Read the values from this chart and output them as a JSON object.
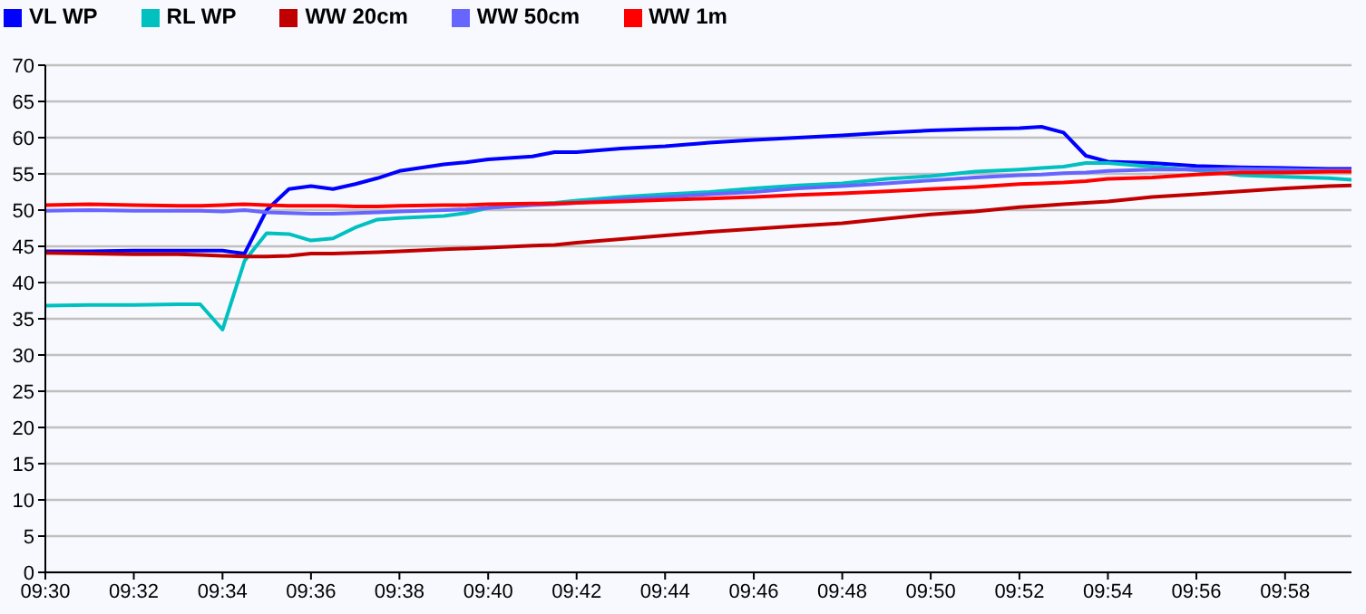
{
  "chart_data": {
    "type": "line",
    "x": [
      9.5,
      9.5167,
      9.5333,
      9.55,
      9.5583,
      9.5667,
      9.575,
      9.5833,
      9.5917,
      9.6,
      9.6083,
      9.6167,
      9.625,
      9.6333,
      9.65,
      9.6583,
      9.6667,
      9.6833,
      9.6917,
      9.7,
      9.7167,
      9.7333,
      9.75,
      9.7667,
      9.7833,
      9.8,
      9.8167,
      9.8333,
      9.85,
      9.8667,
      9.875,
      9.8833,
      9.8917,
      9.9,
      9.9167,
      9.9333,
      9.95,
      9.9667,
      9.9833,
      9.9917
    ],
    "series": [
      {
        "name": "VL WP",
        "color": "#0000ff",
        "values": [
          44.3,
          44.3,
          44.4,
          44.4,
          44.4,
          44.4,
          44.0,
          50,
          52.9,
          53.3,
          52.9,
          53.6,
          54.4,
          55.4,
          56.3,
          56.6,
          57,
          57.4,
          58,
          58,
          58.5,
          58.8,
          59.3,
          59.7,
          60,
          60.3,
          60.7,
          61,
          61.2,
          61.3,
          61.5,
          60.7,
          57.5,
          56.7,
          56.5,
          56.1,
          55.9,
          55.8,
          55.7,
          55.7
        ]
      },
      {
        "name": "RL WP",
        "color": "#00c0c0",
        "values": [
          36.8,
          36.9,
          36.9,
          37,
          37,
          33.5,
          43,
          46.8,
          46.7,
          45.8,
          46.1,
          47.6,
          48.7,
          48.9,
          49.2,
          49.6,
          50.3,
          50.8,
          51,
          51.3,
          51.8,
          52.2,
          52.5,
          53,
          53.4,
          53.7,
          54.3,
          54.7,
          55.3,
          55.6,
          55.8,
          56,
          56.5,
          56.5,
          56,
          55.5,
          54.8,
          54.6,
          54.4,
          54.2
        ]
      },
      {
        "name": "WW 20cm",
        "color": "#c00000",
        "values": [
          44.1,
          44,
          43.9,
          43.9,
          43.8,
          43.7,
          43.6,
          43.6,
          43.7,
          44,
          44,
          44.1,
          44.2,
          44.3,
          44.6,
          44.7,
          44.8,
          45.1,
          45.2,
          45.5,
          46,
          46.5,
          47,
          47.4,
          47.8,
          48.2,
          48.8,
          49.4,
          49.8,
          50.4,
          50.6,
          50.8,
          51,
          51.2,
          51.8,
          52.2,
          52.6,
          53,
          53.3,
          53.4
        ]
      },
      {
        "name": "WW 50cm",
        "color": "#6666ff",
        "values": [
          49.9,
          50,
          49.9,
          49.9,
          49.9,
          49.8,
          50,
          49.7,
          49.6,
          49.5,
          49.5,
          49.6,
          49.7,
          49.8,
          50,
          50.1,
          50.3,
          50.7,
          50.8,
          51,
          51.5,
          51.8,
          52.2,
          52.5,
          53,
          53.3,
          53.7,
          54.1,
          54.5,
          54.8,
          54.9,
          55.1,
          55.2,
          55.4,
          55.6,
          55.6,
          55.7,
          55.6,
          55.5,
          55.5
        ]
      },
      {
        "name": "WW 1m",
        "color": "#ff0000",
        "values": [
          50.7,
          50.8,
          50.7,
          50.6,
          50.6,
          50.7,
          50.8,
          50.7,
          50.6,
          50.6,
          50.6,
          50.5,
          50.5,
          50.6,
          50.7,
          50.7,
          50.8,
          50.9,
          50.9,
          51,
          51.2,
          51.4,
          51.6,
          51.8,
          52.1,
          52.3,
          52.6,
          52.9,
          53.2,
          53.6,
          53.7,
          53.8,
          54,
          54.3,
          54.5,
          54.9,
          55.2,
          55.2,
          55.3,
          55.3
        ]
      }
    ],
    "xlim": [
      9.5,
      9.9917
    ],
    "xticks": [
      {
        "value": 9.5,
        "label": "09:30"
      },
      {
        "value": 9.5333,
        "label": "09:32"
      },
      {
        "value": 9.5667,
        "label": "09:34"
      },
      {
        "value": 9.6,
        "label": "09:36"
      },
      {
        "value": 9.6333,
        "label": "09:38"
      },
      {
        "value": 9.6667,
        "label": "09:40"
      },
      {
        "value": 9.7,
        "label": "09:42"
      },
      {
        "value": 9.7333,
        "label": "09:44"
      },
      {
        "value": 9.7667,
        "label": "09:46"
      },
      {
        "value": 9.8,
        "label": "09:48"
      },
      {
        "value": 9.8333,
        "label": "09:50"
      },
      {
        "value": 9.8667,
        "label": "09:52"
      },
      {
        "value": 9.9,
        "label": "09:54"
      },
      {
        "value": 9.9333,
        "label": "09:56"
      },
      {
        "value": 9.9667,
        "label": "09:58"
      }
    ],
    "ylim": [
      0,
      70
    ],
    "yticks": [
      0,
      5,
      10,
      15,
      20,
      25,
      30,
      35,
      40,
      45,
      50,
      55,
      60,
      65,
      70
    ],
    "grid": "y",
    "legend": "top left",
    "marker": "none",
    "line_style": "solid"
  }
}
